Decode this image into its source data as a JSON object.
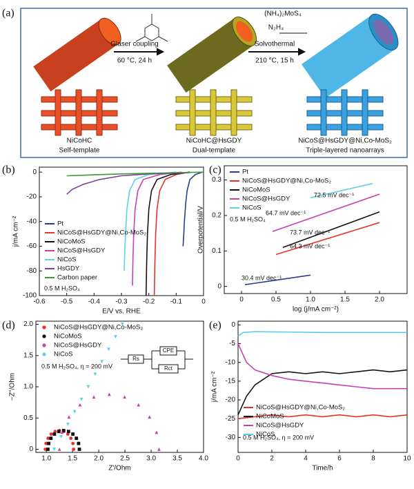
{
  "diagram": {
    "panel_label": "(a)",
    "step1": [
      "Glaser coupling",
      "60 °C, 24 h"
    ],
    "step2": [
      "Solvothermal",
      "210 °C, 15 h"
    ],
    "reagents": [
      "(NH₄)₂MoS₄",
      "N₂H₄"
    ],
    "stages": [
      {
        "name": "NiCoHC",
        "role": "Self-template"
      },
      {
        "name": "NiCoHC@HsGDY",
        "role": "Dual-template"
      },
      {
        "name": "NiCoS@HsGDY@Ni,Co-MoS₂",
        "role": "Triple-layered nanoarrays"
      }
    ]
  },
  "chart_data": [
    {
      "type": "line",
      "panel_label": "(b)",
      "x_label": "E/V vs. RHE",
      "y_label": "j/mA cm⁻²",
      "legend": "lower left",
      "annotations": [
        "0.5 M H₂SO₄"
      ],
      "xlim": [
        -0.6,
        0
      ],
      "ylim": [
        -100,
        4
      ],
      "xticks": [
        -0.6,
        -0.5,
        -0.4,
        -0.3,
        -0.2,
        -0.1,
        0
      ],
      "yticks": [
        -100,
        -80,
        -60,
        -40,
        -20,
        0
      ],
      "series": [
        {
          "name": "Pt",
          "color": "#2b3a8f",
          "x": [
            -0.005,
            -0.03,
            -0.05,
            -0.06,
            -0.065,
            -0.07,
            -0.072,
            -0.075
          ],
          "values": [
            0,
            -2,
            -6,
            -15,
            -25,
            -40,
            -50,
            -60
          ]
        },
        {
          "name": "NiCoS@HsGDY@Ni,Co-MoS₂",
          "color": "#e8302a",
          "x": [
            -0.05,
            -0.1,
            -0.14,
            -0.16,
            -0.17,
            -0.175,
            -0.178,
            -0.18
          ],
          "values": [
            0,
            -2,
            -6,
            -15,
            -30,
            -50,
            -75,
            -100
          ]
        },
        {
          "name": "NiCoMoS",
          "color": "#111111",
          "x": [
            -0.05,
            -0.12,
            -0.17,
            -0.19,
            -0.2,
            -0.205,
            -0.208,
            -0.21
          ],
          "values": [
            0,
            -2,
            -6,
            -15,
            -30,
            -50,
            -75,
            -100
          ]
        },
        {
          "name": "NiCoS@HsGDY",
          "color": "#c93fb0",
          "x": [
            -0.08,
            -0.16,
            -0.22,
            -0.24,
            -0.25,
            -0.255,
            -0.258,
            -0.26
          ],
          "values": [
            0,
            -2,
            -6,
            -15,
            -30,
            -50,
            -70,
            -92
          ]
        },
        {
          "name": "NiCoS",
          "color": "#5bd0e6",
          "x": [
            -0.1,
            -0.2,
            -0.25,
            -0.27,
            -0.28,
            -0.285,
            -0.288,
            -0.29
          ],
          "values": [
            0,
            -2,
            -6,
            -15,
            -30,
            -50,
            -65,
            -80
          ]
        },
        {
          "name": "HsGDY",
          "color": "#7d3fa0",
          "x": [
            -0.05,
            -0.2,
            -0.3,
            -0.38,
            -0.44,
            -0.48,
            -0.5
          ],
          "values": [
            -0.5,
            -1.5,
            -3,
            -6,
            -10,
            -14,
            -18
          ]
        },
        {
          "name": "Carbon paper",
          "color": "#3a9a3a",
          "x": [
            0,
            -0.1,
            -0.2,
            -0.3,
            -0.4,
            -0.5
          ],
          "values": [
            0,
            -0.5,
            -1,
            -1.5,
            -2.2,
            -3
          ]
        }
      ]
    },
    {
      "type": "line",
      "panel_label": "(c)",
      "x_label": "log (j/mA cm⁻²)",
      "y_label": "Overpotential/V",
      "legend": "upper left",
      "annotations": [
        "0.5 M H₂SO₄",
        "72.5 mV dec⁻¹",
        "64.7 mV dec⁻¹",
        "73.7 mV dec⁻¹",
        "64.3 mV dec⁻¹",
        "30.4 mV dec⁻¹"
      ],
      "xlim": [
        -0.25,
        2.4
      ],
      "ylim": [
        -0.02,
        0.34
      ],
      "xticks": [
        0,
        0.5,
        {
          "value": 1,
          "label": "1.0"
        },
        1.5,
        {
          "value": 2,
          "label": "2.0"
        }
      ],
      "yticks": [
        0,
        0.1,
        0.2,
        0.3
      ],
      "series": [
        {
          "name": "Pt",
          "color": "#2b3a8f",
          "x": [
            0.05,
            1.0
          ],
          "values": [
            0.005,
            0.032
          ]
        },
        {
          "name": "NiCoS@HsGDY@Ni,Co-MoS₂",
          "color": "#e8302a",
          "x": [
            0.5,
            2.0
          ],
          "values": [
            0.09,
            0.18
          ]
        },
        {
          "name": "NiCoMoS",
          "color": "#111111",
          "x": [
            0.6,
            2.0
          ],
          "values": [
            0.11,
            0.21
          ]
        },
        {
          "name": "NiCoS@HsGDY",
          "color": "#c93fb0",
          "x": [
            0.45,
            2.0
          ],
          "values": [
            0.155,
            0.26
          ]
        },
        {
          "name": "NiCoS",
          "color": "#5bd0e6",
          "x": [
            1.0,
            1.9
          ],
          "values": [
            0.25,
            0.29
          ]
        }
      ]
    },
    {
      "type": "scatter",
      "panel_label": "(d)",
      "x_label": "Z'/Ohm",
      "y_label": "−Z''/Ohm",
      "legend": "upper left",
      "annotations": [
        "0.5 M H₂SO₄, η = 200 mV"
      ],
      "inset_labels": [
        "Rs",
        "CPE",
        "Rct"
      ],
      "xlim": [
        0.8,
        4.0
      ],
      "ylim": [
        -0.05,
        2.05
      ],
      "xticks": [
        {
          "value": 1,
          "label": "1.0"
        },
        1.5,
        {
          "value": 2,
          "label": "2.0"
        },
        2.5,
        {
          "value": 3,
          "label": "3.0"
        },
        3.5,
        {
          "value": 4,
          "label": "4.0"
        }
      ],
      "yticks": [
        0,
        0.5,
        {
          "value": 1,
          "label": "1.0"
        },
        1.5,
        {
          "value": 2,
          "label": "2.0"
        }
      ],
      "series": [
        {
          "name": "NiCoS@HsGDY@Ni,Co-MoS₂",
          "color": "#e8302a",
          "marker": "circle",
          "x": [
            1.52,
            1.507,
            1.468,
            1.409,
            1.333,
            1.25,
            1.167,
            1.091,
            1.032,
            0.993,
            0.98
          ],
          "values": [
            0,
            0.093,
            0.176,
            0.243,
            0.285,
            0.3,
            0.285,
            0.243,
            0.176,
            0.093,
            0
          ]
        },
        {
          "name": "NiCoMoS",
          "color": "#111111",
          "marker": "square",
          "x": [
            1.63,
            1.615,
            1.573,
            1.506,
            1.423,
            1.33,
            1.237,
            1.154,
            1.087,
            1.045,
            1.03
          ],
          "values": [
            0,
            0.093,
            0.176,
            0.243,
            0.285,
            0.3,
            0.285,
            0.243,
            0.176,
            0.093,
            0
          ]
        },
        {
          "name": "NiCoS@HsGDY",
          "color": "#c93fb0",
          "marker": "triangle-up",
          "x": [
            3.15,
            3.103,
            2.969,
            2.759,
            2.494,
            2.2,
            1.906,
            1.641,
            1.431,
            1.297,
            1.25
          ],
          "values": [
            0,
            0.272,
            0.517,
            0.712,
            0.837,
            0.88,
            0.837,
            0.712,
            0.517,
            0.272,
            0
          ]
        },
        {
          "name": "NiCoS",
          "color": "#5bd0e6",
          "marker": "triangle-down",
          "x": [
            1.15,
            1.28,
            1.41,
            1.54,
            1.67,
            1.8,
            1.93,
            2.06,
            2.19,
            2.32,
            2.45
          ],
          "values": [
            0,
            0.2,
            0.4,
            0.6,
            0.8,
            1.0,
            1.2,
            1.4,
            1.6,
            1.8,
            2.0
          ]
        }
      ]
    },
    {
      "type": "line",
      "panel_label": "(e)",
      "x_label": "Time/h",
      "y_label": "j/mA cm⁻²",
      "legend": "lower left",
      "annotations": [
        "0.5 M H₂SO₄, η = 200 mV"
      ],
      "xlim": [
        0,
        10
      ],
      "ylim": [
        -34,
        1
      ],
      "xticks": [
        0,
        2,
        4,
        6,
        8,
        10
      ],
      "yticks": [
        -30,
        -25,
        -20,
        -15,
        -10,
        -5,
        0
      ],
      "series": [
        {
          "name": "NiCoS@HsGDY@Ni,Co-MoS₂",
          "color": "#e8302a",
          "x": [
            0,
            1,
            2,
            3,
            4,
            5,
            6,
            7,
            8,
            9,
            10
          ],
          "values": [
            -25,
            -24.5,
            -24,
            -24.5,
            -24,
            -24.5,
            -24,
            -24.5,
            -24,
            -24.5,
            -24
          ]
        },
        {
          "name": "NiCoMoS",
          "color": "#111111",
          "x": [
            0,
            0.5,
            1,
            2,
            3,
            4,
            5,
            6,
            7,
            8,
            9,
            10
          ],
          "values": [
            -24,
            -19,
            -16,
            -13,
            -12.5,
            -13,
            -12.5,
            -13,
            -12.5,
            -12,
            -12.5,
            -12
          ]
        },
        {
          "name": "NiCoS@HsGDY",
          "color": "#c93fb0",
          "x": [
            0,
            0.5,
            1,
            2,
            3,
            4,
            5,
            6,
            7,
            8,
            9,
            10
          ],
          "values": [
            -5,
            -10,
            -12,
            -13.5,
            -14.5,
            -15,
            -15.5,
            -16,
            -16.5,
            -17,
            -17,
            -17
          ]
        },
        {
          "name": "NiCoS",
          "color": "#5bd0e6",
          "x": [
            0,
            0.3,
            1,
            5,
            10
          ],
          "values": [
            -3,
            -2,
            -1.8,
            -2,
            -2
          ]
        }
      ]
    }
  ]
}
